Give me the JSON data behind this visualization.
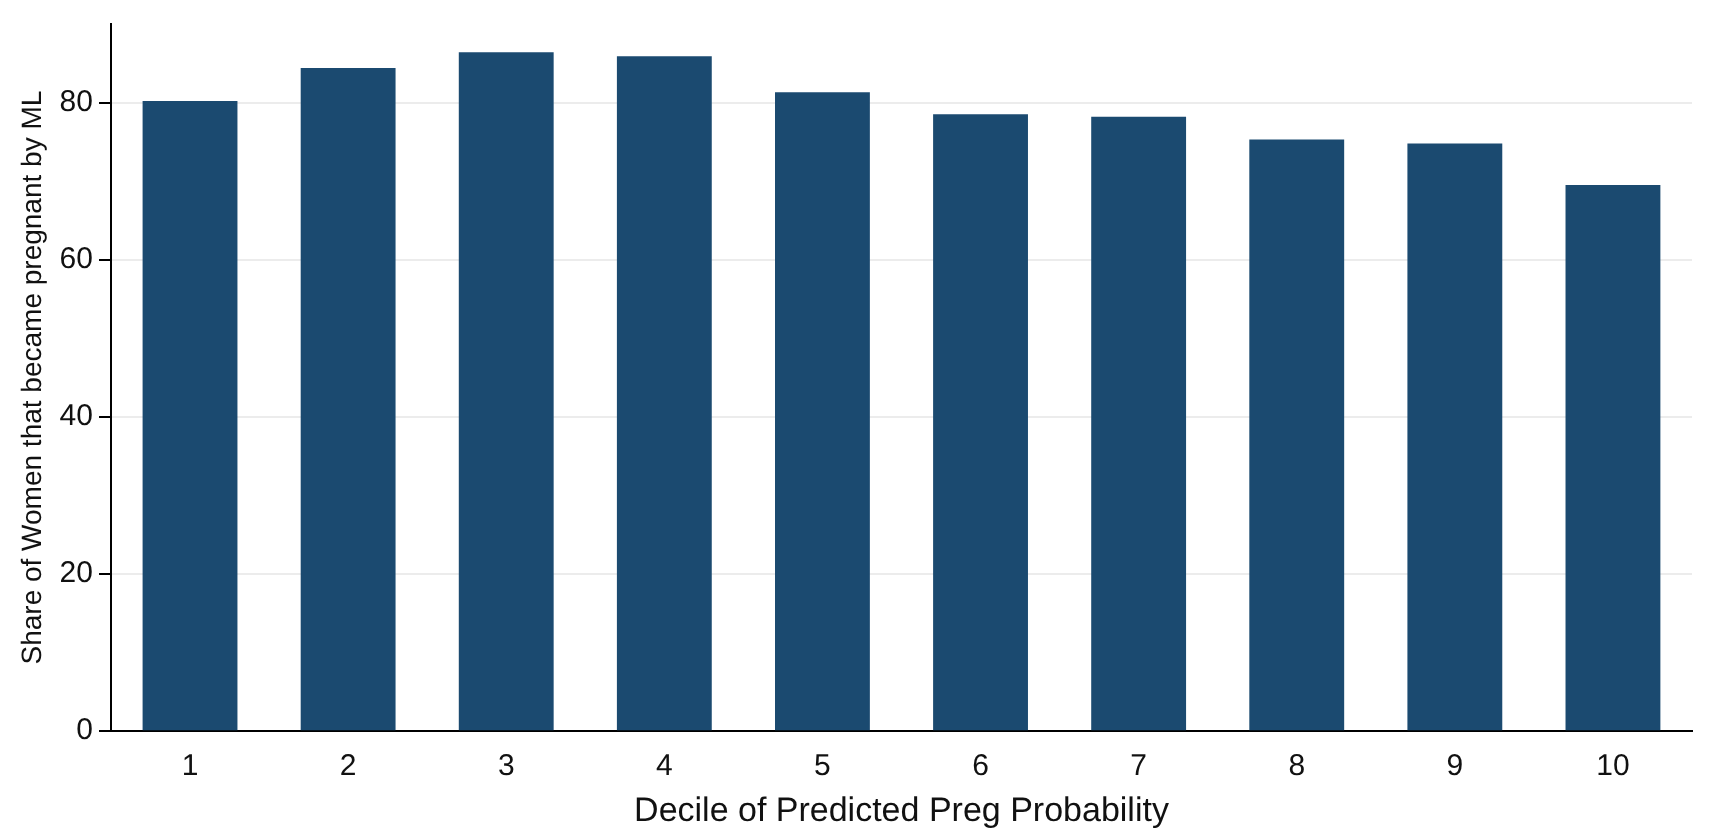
{
  "chart_data": {
    "type": "bar",
    "xlabel": "Decile of Predicted Preg Probability",
    "ylabel": "Share of Women that became pregnant by ML",
    "categories": [
      "1",
      "2",
      "3",
      "4",
      "5",
      "6",
      "7",
      "8",
      "9",
      "10"
    ],
    "values": [
      80.2,
      84.4,
      86.4,
      85.9,
      81.3,
      78.5,
      78.2,
      75.3,
      74.8,
      69.5
    ],
    "color": "#1b4a70",
    "ylim": [
      0,
      90
    ],
    "yticks": [
      0,
      20,
      40,
      60,
      80
    ],
    "grid": "y"
  }
}
